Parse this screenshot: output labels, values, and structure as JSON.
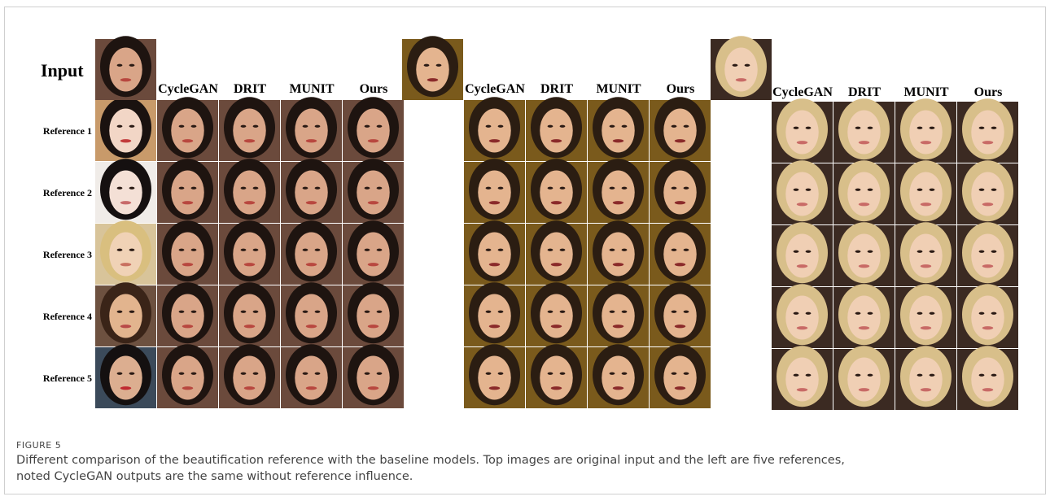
{
  "figure": {
    "input_label": "Input",
    "row_labels": [
      "Reference 1",
      "Reference 2",
      "Reference 3",
      "Reference 4",
      "Reference 5"
    ],
    "groups": [
      {
        "columns": [
          "CycleGAN",
          "DRIT",
          "MUNIT",
          "Ours"
        ]
      },
      {
        "columns": [
          "CycleGAN",
          "DRIT",
          "MUNIT",
          "Ours"
        ]
      },
      {
        "columns": [
          "CycleGAN",
          "DRIT",
          "MUNIT",
          "Ours"
        ]
      }
    ]
  },
  "caption": {
    "label": "FIGURE 5",
    "lines": [
      "Different comparison of the beautification reference with the baseline models. Top images are original input and the left are five references,",
      "noted CycleGAN outputs are the same without reference influence."
    ]
  }
}
